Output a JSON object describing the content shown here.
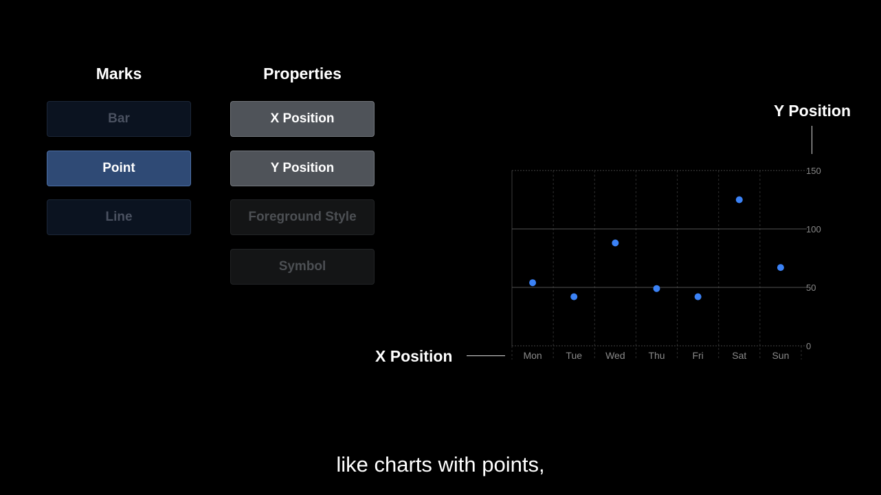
{
  "marks": {
    "title": "Marks",
    "items": [
      {
        "label": "Bar",
        "state": "dim"
      },
      {
        "label": "Point",
        "state": "active"
      },
      {
        "label": "Line",
        "state": "dim"
      }
    ]
  },
  "properties": {
    "title": "Properties",
    "items": [
      {
        "label": "X Position",
        "state": "active"
      },
      {
        "label": "Y Position",
        "state": "active"
      },
      {
        "label": "Foreground Style",
        "state": "dim"
      },
      {
        "label": "Symbol",
        "state": "dim"
      }
    ]
  },
  "annotations": {
    "x_position": "X Position",
    "y_position": "Y Position"
  },
  "caption": "like charts with points,",
  "colors": {
    "point": "#3b82f6",
    "active_mark": "#2f4a75",
    "active_property": "#4f5359"
  },
  "chart_data": {
    "type": "scatter",
    "categories": [
      "Mon",
      "Tue",
      "Wed",
      "Thu",
      "Fri",
      "Sat",
      "Sun"
    ],
    "values": [
      54,
      42,
      88,
      49,
      42,
      125,
      67
    ],
    "ylim": [
      0,
      150
    ],
    "yticks": [
      0,
      50,
      100,
      150
    ],
    "y_axis_side": "right",
    "grid": true
  }
}
